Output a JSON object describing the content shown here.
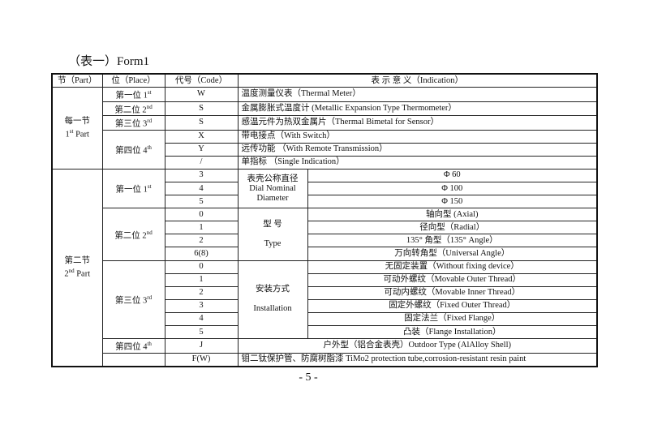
{
  "title": "（表一）Form1",
  "header": {
    "part": "节（Part）",
    "place": "位（Place）",
    "code": "代号（Code）",
    "indication": "表 示 意 义（Indication）"
  },
  "part1": {
    "label": "每一节",
    "en": "1",
    "sup": "st",
    "suffix": " Part",
    "rows": [
      {
        "place": "第一位 1",
        "sup": "st",
        "code": "W",
        "ind": "温度测量仪表（Thermal Meter）"
      },
      {
        "place": "第二位 2",
        "sup": "nd",
        "code": "S",
        "ind": "金属膨胀式温度计 (Metallic Expansion Type Thermometer）"
      },
      {
        "place": "第三位 3",
        "sup": "rd",
        "code": "S",
        "ind": "感温元件为热双金属片（Thermal Bimetal for Sensor）"
      },
      {
        "place": "第四位 4",
        "sup": "th",
        "codes": [
          {
            "code": "X",
            "ind": "带电接点（With Switch）"
          },
          {
            "code": "Y",
            "ind": "远传功能 （With Remote Transmission）"
          },
          {
            "code": "/",
            "ind": "单指标 （Single Indication）"
          }
        ]
      }
    ]
  },
  "part2": {
    "label": "第二节",
    "en": "2",
    "sup": "nd",
    "suffix": " Part",
    "g1": {
      "place": "第一位 1",
      "sup": "st",
      "cat_cn": "表壳公称直径",
      "cat_en1": "Dial Nominal",
      "cat_en2": "Diameter",
      "rows": [
        {
          "code": "3",
          "ind": "Φ 60"
        },
        {
          "code": "4",
          "ind": "Φ 100"
        },
        {
          "code": "5",
          "ind": "Φ 150"
        }
      ]
    },
    "g2": {
      "place": "第二位 2",
      "sup": "nd",
      "cat_cn": "型 号",
      "cat_en": "Type",
      "rows": [
        {
          "code": "0",
          "ind": "轴向型 (Axial)"
        },
        {
          "code": "1",
          "ind": "径向型（Radial）"
        },
        {
          "code": "2",
          "ind": "135° 角型（135° Angle）"
        },
        {
          "code": "6(8)",
          "ind": "万向转角型（Universal Angle）"
        }
      ]
    },
    "g3": {
      "place": "第三位 3",
      "sup": "rd",
      "cat_cn": "安装方式",
      "cat_en": "Installation",
      "rows": [
        {
          "code": "0",
          "ind": "无固定装置（Without fixing device）"
        },
        {
          "code": "1",
          "ind": "可动外螺纹（Movable Outer Thread）"
        },
        {
          "code": "2",
          "ind": "可动内螺纹（Movable Inner Thread）"
        },
        {
          "code": "3",
          "ind": "固定外螺纹（Fixed Outer Thread）"
        },
        {
          "code": "4",
          "ind": "固定法兰（Fixed Flange）"
        },
        {
          "code": "5",
          "ind": "凸装（Flange Installation）"
        }
      ]
    },
    "g4": {
      "place": "第四位 4",
      "sup": "th",
      "code": "J",
      "ind": "户外型（铝合金表壳）Outdoor Type (AlAlloy Shell)"
    },
    "g5": {
      "place": "",
      "code": "F(W)",
      "ind": "钼二钛保护管、防腐树脂漆 TiMo2 protection tube,corrosion-resistant resin paint"
    }
  },
  "page_number": "- 5 -"
}
